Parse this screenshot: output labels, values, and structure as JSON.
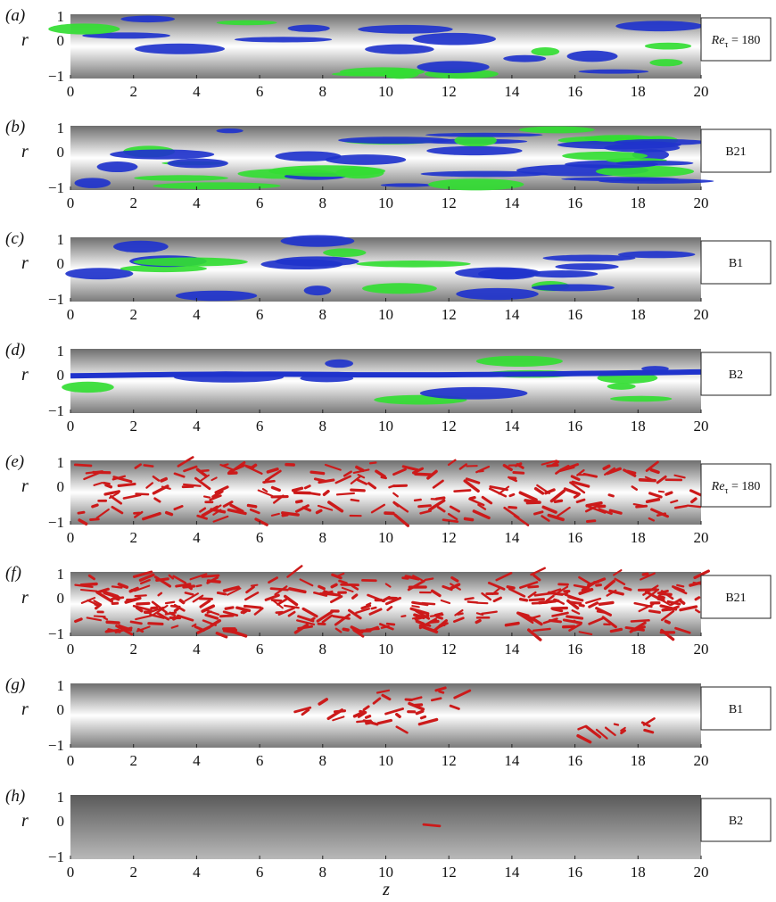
{
  "figure": {
    "xlabel": "z",
    "ylabel": "r",
    "x_ticks": [
      "0",
      "2",
      "4",
      "6",
      "8",
      "10",
      "12",
      "14",
      "16",
      "18",
      "20"
    ],
    "y_ticks": [
      "1",
      "0",
      "−1"
    ],
    "colors": {
      "blue": "#1f33cc",
      "green": "#33dd33",
      "red": "#cc1a1a"
    },
    "panels": [
      {
        "id": "a",
        "label": "(a)",
        "case": "Re_tau = 180",
        "case_main": "Re",
        "case_sub": "τ",
        "case_rest": " = 180",
        "kind": "streak"
      },
      {
        "id": "b",
        "label": "(b)",
        "case": "B21",
        "kind": "streak"
      },
      {
        "id": "c",
        "label": "(c)",
        "case": "B1",
        "kind": "streak"
      },
      {
        "id": "d",
        "label": "(d)",
        "case": "B2",
        "kind": "streak"
      },
      {
        "id": "e",
        "label": "(e)",
        "case": "Re_tau = 180",
        "case_main": "Re",
        "case_sub": "τ",
        "case_rest": " = 180",
        "kind": "vortex"
      },
      {
        "id": "f",
        "label": "(f)",
        "case": "B21",
        "kind": "vortex"
      },
      {
        "id": "g",
        "label": "(g)",
        "case": "B1",
        "kind": "vortex"
      },
      {
        "id": "h",
        "label": "(h)",
        "case": "B2",
        "kind": "vortex"
      }
    ]
  }
}
